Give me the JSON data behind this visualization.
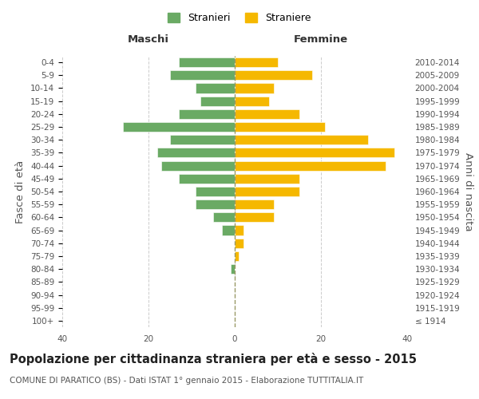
{
  "age_groups": [
    "100+",
    "95-99",
    "90-94",
    "85-89",
    "80-84",
    "75-79",
    "70-74",
    "65-69",
    "60-64",
    "55-59",
    "50-54",
    "45-49",
    "40-44",
    "35-39",
    "30-34",
    "25-29",
    "20-24",
    "15-19",
    "10-14",
    "5-9",
    "0-4"
  ],
  "birth_years": [
    "≤ 1914",
    "1915-1919",
    "1920-1924",
    "1925-1929",
    "1930-1934",
    "1935-1939",
    "1940-1944",
    "1945-1949",
    "1950-1954",
    "1955-1959",
    "1960-1964",
    "1965-1969",
    "1970-1974",
    "1975-1979",
    "1980-1984",
    "1985-1989",
    "1990-1994",
    "1995-1999",
    "2000-2004",
    "2005-2009",
    "2010-2014"
  ],
  "males": [
    0,
    0,
    0,
    0,
    1,
    0,
    0,
    3,
    5,
    9,
    9,
    13,
    17,
    18,
    15,
    26,
    13,
    8,
    9,
    15,
    13
  ],
  "females": [
    0,
    0,
    0,
    0,
    0,
    1,
    2,
    2,
    9,
    9,
    15,
    15,
    35,
    37,
    31,
    21,
    15,
    8,
    9,
    18,
    10
  ],
  "male_color": "#6aaa64",
  "female_color": "#f5b800",
  "background_color": "#ffffff",
  "grid_color": "#cccccc",
  "title": "Popolazione per cittadinanza straniera per età e sesso - 2015",
  "subtitle": "COMUNE DI PARATICO (BS) - Dati ISTAT 1° gennaio 2015 - Elaborazione TUTTITALIA.IT",
  "xlabel_left": "Maschi",
  "xlabel_right": "Femmine",
  "ylabel_left": "Fasce di età",
  "ylabel_right": "Anni di nascita",
  "legend_male": "Stranieri",
  "legend_female": "Straniere",
  "xlim": 40,
  "title_fontsize": 10.5,
  "subtitle_fontsize": 7.5,
  "tick_fontsize": 7.5,
  "label_fontsize": 9.5
}
